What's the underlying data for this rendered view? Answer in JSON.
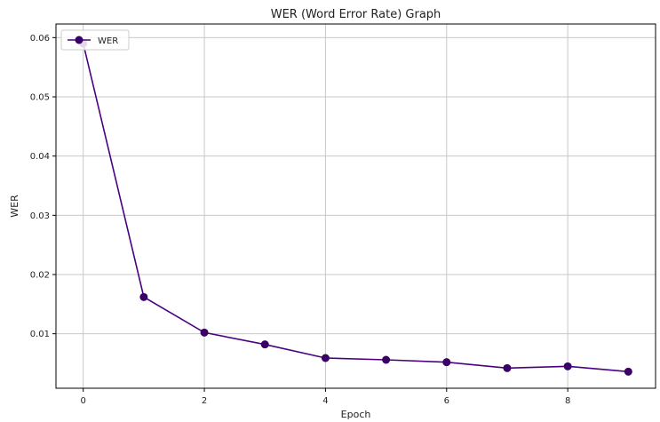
{
  "chart_data": {
    "type": "line",
    "title": "WER (Word Error Rate) Graph",
    "xlabel": "Epoch",
    "ylabel": "WER",
    "x": [
      0,
      1,
      2,
      3,
      4,
      5,
      6,
      7,
      8,
      9
    ],
    "series": [
      {
        "name": "WER",
        "values": [
          0.059,
          0.0162,
          0.0102,
          0.0082,
          0.0059,
          0.0056,
          0.0052,
          0.0042,
          0.0045,
          0.0036
        ]
      }
    ],
    "xlim": [
      -0.45,
      9.45
    ],
    "ylim": [
      0.0008,
      0.0623
    ],
    "xticks": [
      0,
      2,
      4,
      6,
      8
    ],
    "yticks": [
      0.01,
      0.02,
      0.03,
      0.04,
      0.05,
      0.06
    ],
    "xtick_labels": [
      "0",
      "2",
      "4",
      "6",
      "8"
    ],
    "ytick_labels": [
      "0.01",
      "0.02",
      "0.03",
      "0.04",
      "0.05",
      "0.06"
    ],
    "grid": true,
    "legend_position": "top-left",
    "colors": {
      "series": "#4b0082",
      "marker": "#3a0066",
      "grid": "#c8c8c8",
      "axis": "#000000"
    }
  }
}
